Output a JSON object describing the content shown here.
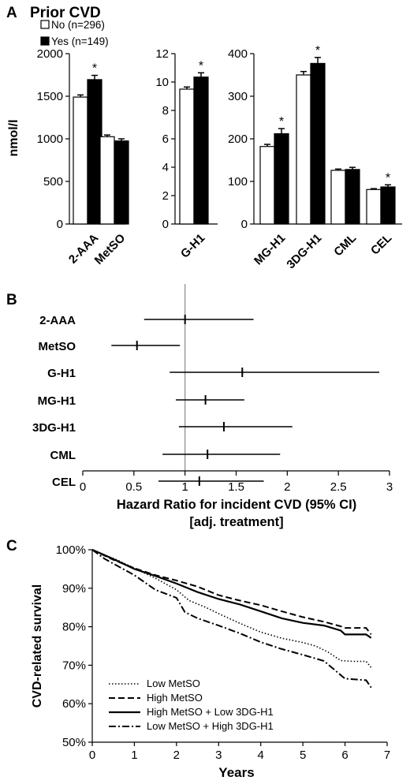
{
  "chart_data": [
    {
      "panel": "A",
      "type": "bar",
      "title": "Prior CVD",
      "ylabel": "nmol/l",
      "legend": {
        "placement": "top-left",
        "entries": [
          "No (n=296)",
          "Yes (n=149)"
        ]
      },
      "series_colors": {
        "No (n=296)": "#ffffff",
        "Yes (n=149)": "#000000"
      },
      "subplots": [
        {
          "categories": [
            "2-AAA",
            "MetSO"
          ],
          "ylim": [
            0,
            2000
          ],
          "yticks": [
            "0",
            "500",
            "1000",
            "1500",
            "2000"
          ],
          "series": [
            {
              "name": "No (n=296)",
              "values": [
                1490,
                1025
              ],
              "errors": [
                25,
                20
              ]
            },
            {
              "name": "Yes (n=149)",
              "values": [
                1695,
                975
              ],
              "errors": [
                50,
                25
              ]
            }
          ],
          "significant": [
            true,
            false
          ],
          "marker": "*"
        },
        {
          "categories": [
            "G-H1"
          ],
          "ylim": [
            0,
            12
          ],
          "yticks": [
            "0",
            "2",
            "4",
            "6",
            "8",
            "10",
            "12"
          ],
          "series": [
            {
              "name": "No (n=296)",
              "values": [
                9.5
              ],
              "errors": [
                0.15
              ]
            },
            {
              "name": "Yes (n=149)",
              "values": [
                10.35
              ],
              "errors": [
                0.3
              ]
            }
          ],
          "significant": [
            true
          ],
          "marker": "*"
        },
        {
          "categories": [
            "MG-H1",
            "3DG-H1",
            "CML",
            "CEL"
          ],
          "ylim": [
            0,
            400
          ],
          "yticks": [
            "0",
            "100",
            "200",
            "300",
            "400"
          ],
          "series": [
            {
              "name": "No (n=296)",
              "values": [
                182,
                350,
                126,
                81
              ],
              "errors": [
                5,
                8,
                3,
                2
              ]
            },
            {
              "name": "Yes (n=149)",
              "values": [
                212,
                377,
                128,
                87
              ],
              "errors": [
                12,
                14,
                5,
                5
              ]
            }
          ],
          "significant": [
            true,
            true,
            false,
            true
          ],
          "marker": "*"
        }
      ]
    },
    {
      "panel": "B",
      "type": "forest",
      "xlabel": "Hazard Ratio for incident CVD (95% CI)",
      "xlabel2": "[adj. treatment]",
      "xlim": [
        0,
        3
      ],
      "xticks": [
        "0",
        "0.5",
        "1",
        "1.5",
        "2",
        "2.5",
        "3"
      ],
      "reference_line": 1,
      "rows": [
        {
          "label": "2-AAA",
          "hr": 1.0,
          "lo": 0.6,
          "hi": 1.67
        },
        {
          "label": "MetSO",
          "hr": 0.53,
          "lo": 0.28,
          "hi": 0.95
        },
        {
          "label": "G-H1",
          "hr": 1.56,
          "lo": 0.85,
          "hi": 2.9
        },
        {
          "label": "MG-H1",
          "hr": 1.2,
          "lo": 0.91,
          "hi": 1.58
        },
        {
          "label": "3DG-H1",
          "hr": 1.38,
          "lo": 0.94,
          "hi": 2.05
        },
        {
          "label": "CML",
          "hr": 1.22,
          "lo": 0.78,
          "hi": 1.93
        },
        {
          "label": "CEL",
          "hr": 1.14,
          "lo": 0.74,
          "hi": 1.77
        }
      ]
    },
    {
      "panel": "C",
      "type": "line",
      "xlabel": "Years",
      "ylabel": "CVD-related survival",
      "xlim": [
        0,
        7
      ],
      "ylim": [
        50,
        100
      ],
      "xticks": [
        "0",
        "1",
        "2",
        "3",
        "4",
        "5",
        "6",
        "7"
      ],
      "yticks": [
        "50%",
        "60%",
        "70%",
        "80%",
        "90%",
        "100%"
      ],
      "legend": {
        "placement": "bottom-left"
      },
      "series": [
        {
          "name": "Low MetSO",
          "dash": "dotted",
          "x": [
            0,
            0.3,
            0.6,
            1.0,
            1.5,
            2.0,
            2.3,
            2.7,
            3.0,
            3.5,
            4.0,
            4.5,
            5.0,
            5.3,
            5.6,
            5.9,
            6.2,
            6.5,
            6.62
          ],
          "y": [
            100,
            98.6,
            97.3,
            95.2,
            92.6,
            89.6,
            86.8,
            85.0,
            83.4,
            80.9,
            78.6,
            77.0,
            75.9,
            75.0,
            73.4,
            71.2,
            71.0,
            71.0,
            69.4
          ]
        },
        {
          "name": "High MetSO",
          "dash": "dashed",
          "x": [
            0,
            0.5,
            1.0,
            1.5,
            2.0,
            2.5,
            3.0,
            3.5,
            4.0,
            4.5,
            5.0,
            5.5,
            5.9,
            6.0,
            6.5,
            6.62
          ],
          "y": [
            100,
            97.4,
            95.2,
            93.4,
            92.0,
            90.4,
            88.2,
            86.8,
            85.6,
            84.0,
            82.5,
            81.3,
            80.1,
            79.7,
            79.7,
            78.0
          ]
        },
        {
          "name": "High MetSO + Low 3DG-H1",
          "dash": "solid",
          "x": [
            0,
            0.5,
            1.0,
            1.5,
            2.0,
            2.5,
            3.0,
            3.5,
            4.0,
            4.5,
            5.0,
            5.5,
            5.9,
            6.0,
            6.5,
            6.62
          ],
          "y": [
            100,
            97.6,
            95.0,
            93.2,
            91.2,
            89.0,
            87.2,
            85.8,
            84.0,
            82.2,
            81.0,
            80.3,
            79.0,
            78.0,
            78.0,
            77.1
          ]
        },
        {
          "name": "Low MetSO  + High 3DG-H1",
          "dash": "dashdot",
          "x": [
            0,
            0.3,
            0.7,
            1.0,
            1.5,
            2.0,
            2.2,
            2.5,
            3.0,
            3.5,
            4.0,
            4.5,
            5.0,
            5.5,
            6.0,
            6.5,
            6.62
          ],
          "y": [
            100,
            97.6,
            95.2,
            93.4,
            89.6,
            87.5,
            83.8,
            82.2,
            80.3,
            78.3,
            76.0,
            74.2,
            72.7,
            71.1,
            66.5,
            66.1,
            64.2
          ]
        }
      ]
    }
  ],
  "labels": {
    "panel_a": "A",
    "panel_b": "B",
    "panel_c": "C"
  }
}
